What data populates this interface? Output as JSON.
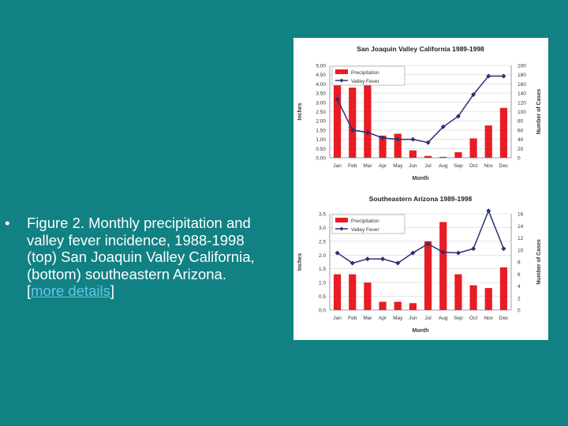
{
  "caption": {
    "bullet": "•",
    "text": "Figure 2. Monthly precipitation and valley fever incidence, 1988-1998 (top) San Joaquin Valley California, (bottom) southeastern Arizona.",
    "link_open": "[",
    "link_text": "more details",
    "link_close": "]"
  },
  "colors": {
    "background": "#118183",
    "bar": "#e81c24",
    "line": "#2b2f74",
    "link": "#67c5e3",
    "text": "#ffffff"
  },
  "chart_data": [
    {
      "type": "bar",
      "title": "San Joaquin Valley California 1989-1998",
      "xlabel": "Month",
      "ylabel": "Inches",
      "y2label": "Number of Cases",
      "categories": [
        "Jan",
        "Feb",
        "Mar",
        "Apr",
        "May",
        "Jun",
        "Jul",
        "Aug",
        "Sep",
        "Oct",
        "Nov",
        "Dec"
      ],
      "ylim": [
        0,
        5
      ],
      "y2lim": [
        0,
        200
      ],
      "yticks": [
        "0.00",
        "0.50",
        "1.00",
        "1.50",
        "2.00",
        "2.50",
        "3.00",
        "3.50",
        "4.00",
        "4.50",
        "5.00"
      ],
      "y2ticks": [
        "0",
        "20",
        "40",
        "60",
        "80",
        "100",
        "120",
        "140",
        "160",
        "180",
        "200"
      ],
      "legend": [
        "Precipitation",
        "Valley Fever"
      ],
      "legend_position": "top-left",
      "series": [
        {
          "name": "Precipitation",
          "kind": "bar",
          "axis": "left",
          "values": [
            4.6,
            3.8,
            3.95,
            1.2,
            1.3,
            0.4,
            0.1,
            0.05,
            0.3,
            1.05,
            1.75,
            2.7
          ]
        },
        {
          "name": "Valley Fever",
          "kind": "line",
          "axis": "right",
          "values": [
            127,
            60,
            55,
            43,
            40,
            40,
            33,
            67,
            90,
            137,
            177,
            177
          ]
        }
      ]
    },
    {
      "type": "bar",
      "title": "Southeastern Arizona 1989-1998",
      "xlabel": "Month",
      "ylabel": "Inches",
      "y2label": "Number of Cases",
      "categories": [
        "Jan",
        "Feb",
        "Mar",
        "Apr",
        "May",
        "Jun",
        "Jul",
        "Aug",
        "Sep",
        "Oct",
        "Nov",
        "Dec"
      ],
      "ylim": [
        0,
        3.5
      ],
      "y2lim": [
        0,
        16
      ],
      "yticks": [
        "0.0",
        "0.5",
        "1.0",
        "1.5",
        "2.0",
        "2.5",
        "3.0",
        "3.5"
      ],
      "y2ticks": [
        "0",
        "2",
        "4",
        "6",
        "8",
        "10",
        "12",
        "14",
        "16"
      ],
      "legend": [
        "Precipitation",
        "Valley Fever"
      ],
      "legend_position": "top-left",
      "series": [
        {
          "name": "Precipitation",
          "kind": "bar",
          "axis": "left",
          "values": [
            1.3,
            1.3,
            1.0,
            0.3,
            0.3,
            0.25,
            2.5,
            3.2,
            1.3,
            0.9,
            0.8,
            1.55
          ]
        },
        {
          "name": "Valley Fever",
          "kind": "line",
          "axis": "right",
          "values": [
            9.5,
            7.8,
            8.5,
            8.5,
            7.8,
            9.5,
            11.0,
            9.6,
            9.5,
            10.2,
            16.5,
            10.2
          ]
        }
      ]
    }
  ]
}
